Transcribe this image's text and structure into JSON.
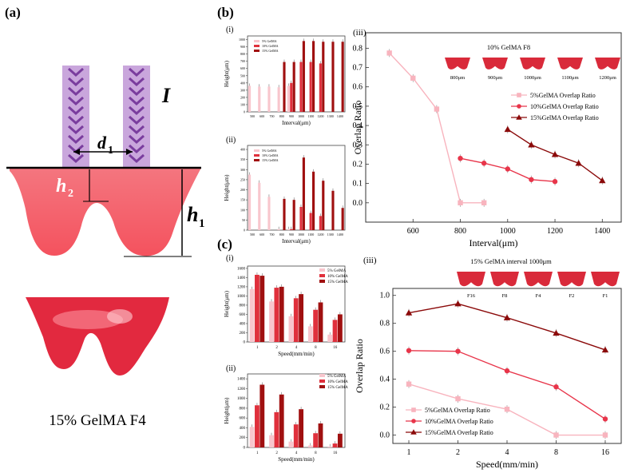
{
  "panels": {
    "a": {
      "label": "(a)",
      "i_label": "I",
      "d1": "d",
      "d1_sub": "1",
      "h2": "h",
      "h2_sub": "2",
      "h1": "h",
      "h1_sub": "1",
      "caption": "15% GelMA F4"
    },
    "b": {
      "label": "(b)"
    },
    "c": {
      "label": "(c)"
    }
  },
  "colors": {
    "c5": "#f8c6cd",
    "c10": "#e0303c",
    "c15": "#a01010",
    "l5": "#f8b4be",
    "l10": "#e8354a",
    "l15": "#8b0a0a",
    "gel": "#f4525e"
  },
  "chart_data": [
    {
      "id": "b-i",
      "type": "bar",
      "panel_label": "(i)",
      "ylabel": "Height(μm)",
      "xlabel": "Interval(μm)",
      "categories": [
        "500",
        "600",
        "700",
        "800",
        "900",
        "1000",
        "1100",
        "1200",
        "1300",
        "1400"
      ],
      "ylim": [
        0,
        1050
      ],
      "yticks": [
        "0",
        "100",
        "200",
        "300",
        "400",
        "500",
        "600",
        "700",
        "800",
        "900",
        "1000"
      ],
      "legend": [
        "5% GelMA",
        "10% GelMA",
        "15% GelMA"
      ],
      "series": [
        {
          "name": "5% GelMA",
          "values": [
            360,
            350,
            350,
            340,
            360,
            0,
            0,
            0,
            0,
            0
          ]
        },
        {
          "name": "10% GelMA",
          "values": [
            0,
            0,
            0,
            0,
            400,
            690,
            690,
            670,
            0,
            0
          ]
        },
        {
          "name": "15% GelMA",
          "values": [
            0,
            0,
            0,
            690,
            690,
            980,
            980,
            970,
            970,
            970
          ]
        }
      ]
    },
    {
      "id": "b-ii",
      "type": "bar",
      "panel_label": "(ii)",
      "ylabel": "Height(μm)",
      "xlabel": "Interval(μm)",
      "categories": [
        "500",
        "600",
        "700",
        "800",
        "900",
        "1000",
        "1100",
        "1200",
        "1300",
        "1400"
      ],
      "ylim": [
        0,
        420
      ],
      "yticks": [
        "0",
        "50",
        "100",
        "150",
        "200",
        "250",
        "300",
        "350",
        "400"
      ],
      "legend": [
        "5% GelMA",
        "10% GelMA",
        "15% GelMA"
      ],
      "series": [
        {
          "name": "5% GelMA",
          "values": [
            275,
            235,
            165,
            5,
            5,
            0,
            0,
            0,
            0,
            0
          ]
        },
        {
          "name": "10% GelMA",
          "values": [
            0,
            0,
            0,
            0,
            5,
            115,
            85,
            70,
            0,
            0
          ]
        },
        {
          "name": "15% GelMA",
          "values": [
            0,
            0,
            0,
            155,
            150,
            360,
            290,
            245,
            195,
            110
          ]
        }
      ]
    },
    {
      "id": "b-iii",
      "type": "line",
      "panel_label": "(iii)",
      "ylabel": "Overlap Ratio",
      "xlabel": "Interval(μm)",
      "xlim": [
        400,
        1480
      ],
      "ylim": [
        -0.1,
        0.88
      ],
      "xticks": [
        "600",
        "800",
        "1000",
        "1200",
        "1400"
      ],
      "yticks": [
        "0.0",
        "0.1",
        "0.2",
        "0.3",
        "0.4",
        "0.5",
        "0.6",
        "0.7",
        "0.8"
      ],
      "inset_title": "10% GelMA F8",
      "inset_labels": [
        "800μm",
        "900μm",
        "1000μm",
        "1100μm",
        "1200μm"
      ],
      "series": [
        {
          "name": "5%GelMA Overlap Ratio",
          "x": [
            500,
            600,
            700,
            800,
            900
          ],
          "values": [
            0.775,
            0.645,
            0.485,
            0.0,
            0.0
          ]
        },
        {
          "name": "10%GelMA  Overlap Ratio",
          "x": [
            800,
            900,
            1000,
            1100,
            1200
          ],
          "values": [
            0.23,
            0.205,
            0.175,
            0.12,
            0.11
          ]
        },
        {
          "name": "15%GelMA Overlap Ratio",
          "x": [
            1000,
            1100,
            1200,
            1300,
            1400
          ],
          "values": [
            0.38,
            0.3,
            0.25,
            0.205,
            0.115
          ]
        }
      ]
    },
    {
      "id": "c-i",
      "type": "bar",
      "panel_label": "(i)",
      "ylabel": "Height(μm)",
      "xlabel": "Speed(mm/min)",
      "categories": [
        "1",
        "2",
        "4",
        "8",
        "16"
      ],
      "ylim": [
        0,
        1650
      ],
      "yticks": [
        "0",
        "200",
        "400",
        "600",
        "800",
        "1000",
        "1200",
        "1400",
        "1600"
      ],
      "legend": [
        "5% GelMA",
        "10% GelMA",
        "15% GelMA"
      ],
      "series": [
        {
          "name": "5% GelMA",
          "values": [
            1150,
            880,
            560,
            340,
            160
          ]
        },
        {
          "name": "10% GelMA",
          "values": [
            1460,
            1180,
            950,
            700,
            480
          ]
        },
        {
          "name": "15% GelMA",
          "values": [
            1440,
            1200,
            1040,
            860,
            600
          ]
        }
      ]
    },
    {
      "id": "c-ii",
      "type": "bar",
      "panel_label": "(ii)",
      "ylabel": "Height(μm)",
      "xlabel": "Speed(mm/min)",
      "categories": [
        "1",
        "2",
        "4",
        "8",
        "16"
      ],
      "ylim": [
        0,
        1500
      ],
      "yticks": [
        "0",
        "200",
        "400",
        "600",
        "800",
        "1000",
        "1200",
        "1400"
      ],
      "legend": [
        "5% GelMA",
        "10% GelMA",
        "15% GelMA"
      ],
      "series": [
        {
          "name": "5% GelMA",
          "values": [
            420,
            250,
            120,
            40,
            20
          ]
        },
        {
          "name": "10% GelMA",
          "values": [
            860,
            720,
            470,
            290,
            80
          ]
        },
        {
          "name": "15% GelMA",
          "values": [
            1280,
            1080,
            780,
            490,
            280
          ]
        }
      ]
    },
    {
      "id": "c-iii",
      "type": "line",
      "panel_label": "(iii)",
      "ylabel": "Overlap Ratio",
      "xlabel": "Speed(mm/min)",
      "categories": [
        "1",
        "2",
        "4",
        "8",
        "16"
      ],
      "ylim": [
        -0.06,
        1.05
      ],
      "yticks": [
        "0.0",
        "0.2",
        "0.4",
        "0.6",
        "0.8",
        "1.0"
      ],
      "inset_title": "15% GelMA interval 1000μm",
      "inset_labels": [
        "F16",
        "F8",
        "F4",
        "F2",
        "F1"
      ],
      "series": [
        {
          "name": "5%GelMA Overlap Ratio",
          "values": [
            0.365,
            0.26,
            0.185,
            0.0,
            0.0
          ]
        },
        {
          "name": "10%GelMA  Overlap Ratio",
          "values": [
            0.605,
            0.6,
            0.46,
            0.345,
            0.115
          ]
        },
        {
          "name": "15%GelMA  Overlap Ratio",
          "values": [
            0.875,
            0.94,
            0.84,
            0.73,
            0.61
          ]
        }
      ]
    }
  ]
}
